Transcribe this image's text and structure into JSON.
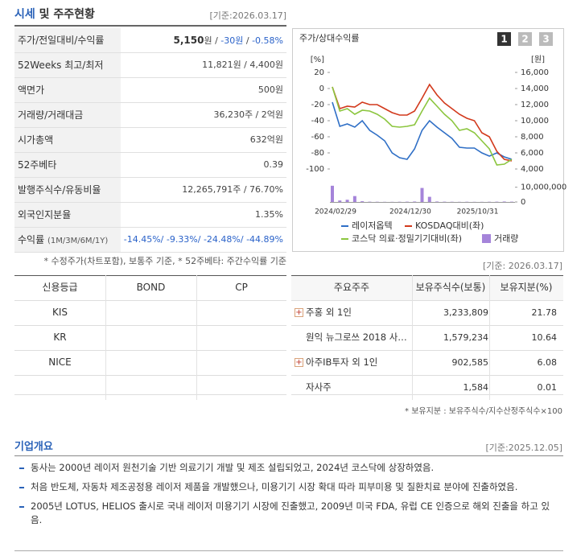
{
  "header": {
    "title_main": "시세",
    "title_rest": "및 주주현황",
    "date": "[기준:2026.03.17]"
  },
  "quote_table": {
    "rows": [
      {
        "label": "주가/전일대비/수익률",
        "value": [
          {
            "text": "5,150",
            "bold": true
          },
          "원 / ",
          {
            "text": "-30원",
            "color": "#2a62c9"
          },
          " / ",
          {
            "text": "-0.58%",
            "color": "#2a62c9"
          }
        ]
      },
      {
        "label": "52Weeks 최고/최저",
        "value": [
          "11,821원 / 4,400원"
        ]
      },
      {
        "label": "액면가",
        "value": [
          "500원"
        ]
      },
      {
        "label": "거래량/거래대금",
        "value": [
          "36,230주 / 2억원"
        ]
      },
      {
        "label": "시가총액",
        "value": [
          "632억원"
        ]
      },
      {
        "label": "52주베타",
        "value": [
          "0.39"
        ]
      },
      {
        "label": "발행주식수/유동비율",
        "value": [
          "12,265,791주 / 76.70%"
        ]
      },
      {
        "label": "외국인지분율",
        "value": [
          "1.35%"
        ]
      },
      {
        "label": "수익률",
        "label_note": "(1M/3M/6M/1Y)",
        "value": [
          {
            "text": "-14.45%/ -9.33%/ -24.48%/ -44.89%",
            "color": "#2a62c9"
          }
        ]
      }
    ],
    "note": "* 수정주가(차트포함), 보통주 기준, * 52주베타: 주간수익률 기준"
  },
  "chart_data": {
    "type": "line",
    "title": "주가/상대수익률",
    "buttons": [
      "1",
      "2",
      "3"
    ],
    "y_label": "[%]",
    "y2_label": "[원]",
    "categories": [
      "2024/02/29",
      null,
      null,
      null,
      null,
      null,
      null,
      null,
      null,
      null,
      "2024/12/30",
      null,
      null,
      null,
      null,
      null,
      null,
      null,
      null,
      "2025/10/31",
      null,
      null,
      null,
      null,
      null
    ],
    "ylim": [
      -100,
      20
    ],
    "yticks": [
      20,
      0,
      -20,
      -40,
      -60,
      -80,
      -100
    ],
    "y2lim": [
      4000,
      16000
    ],
    "y2ticks": [
      {
        "value": 16000,
        "label": "16,000"
      },
      {
        "value": 14000,
        "label": "14,000"
      },
      {
        "value": 12000,
        "label": "12,000"
      },
      {
        "value": 10000,
        "label": "10,000"
      },
      {
        "value": 8000,
        "label": "8,000"
      },
      {
        "value": 6000,
        "label": "6,000"
      },
      {
        "value": 4000,
        "label": "4,000"
      }
    ],
    "volume_lim": [
      0,
      12000000
    ],
    "volume_ticks": [
      {
        "value": 10000000,
        "label": "10,000,000"
      },
      0
    ],
    "series": [
      {
        "name": "레이저옵텍",
        "color": "#2f6fc6",
        "axis": "y2",
        "values": [
          12300,
          9300,
          9600,
          9200,
          10000,
          8800,
          8200,
          7500,
          6000,
          5400,
          5200,
          6500,
          8800,
          10000,
          9200,
          8500,
          7800,
          6700,
          6600,
          6600,
          6000,
          5600,
          6000,
          5500,
          5200
        ]
      },
      {
        "name": "KOSDAQ대비(좌)",
        "color": "#d2391c",
        "values": [
          2,
          -25,
          -22,
          -23,
          -17,
          -20,
          -20,
          -25,
          -30,
          -33,
          -33,
          -28,
          -12,
          5,
          -8,
          -18,
          -25,
          -32,
          -37,
          -40,
          -55,
          -60,
          -78,
          -88,
          -90
        ]
      },
      {
        "name": "코스닥 의료·정밀기기대비(좌)",
        "color": "#8cc63f",
        "values": [
          2,
          -28,
          -25,
          -32,
          -27,
          -28,
          -32,
          -38,
          -47,
          -48,
          -47,
          -45,
          -28,
          -12,
          -22,
          -32,
          -40,
          -52,
          -50,
          -55,
          -65,
          -75,
          -95,
          -94,
          -88
        ]
      },
      {
        "name": "거래량",
        "color": "#a584da",
        "type": "bar",
        "axis": "volume",
        "values": [
          11000000,
          1000000,
          1500000,
          4000000,
          500000,
          200000,
          150000,
          100000,
          100000,
          150000,
          200000,
          300000,
          9500000,
          3500000,
          300000,
          200000,
          150000,
          100000,
          150000,
          100000,
          100000,
          150000,
          200000,
          300000,
          200000
        ]
      }
    ]
  },
  "credit_table": {
    "headers": [
      "신용등급",
      "BOND",
      "CP"
    ],
    "agencies": [
      "KIS",
      "KR",
      "NICE"
    ]
  },
  "shareholders": {
    "date": "[기준: 2026.03.17]",
    "headers": [
      "주요주주",
      "보유주식수(보통)",
      "보유지분(%)"
    ],
    "rows": [
      {
        "name": "주홍 외 1인",
        "shares": "3,233,809",
        "stake": "21.78",
        "expandable": true
      },
      {
        "name": "원익 뉴그로쓰 2018 사…",
        "shares": "1,579,234",
        "stake": "10.64",
        "expandable": false
      },
      {
        "name": "아주IB투자 외 1인",
        "shares": "902,585",
        "stake": "6.08",
        "expandable": true
      },
      {
        "name": "자사주",
        "shares": "1,584",
        "stake": "0.01",
        "expandable": false
      }
    ],
    "note": "* 보유지분 : 보유주식수/지수산정주식수×100"
  },
  "overview": {
    "title": "기업개요",
    "date": "[기준:2025.12.05]",
    "items": [
      "동사는 2000년 레이저 원천기술 기반 의료기기 개발 및 제조 설립되었고, 2024년 코스닥에 상장하였음.",
      "처음 반도체, 자동차 제조공정용 레이저 제품을 개발했으나, 미용기기 시장 확대 따라 피부미용 및 질환치료 분야에 진출하였음.",
      "2005년 LOTUS, HELIOS 출시로 국내 레이저 미용기기 시장에 진출했고, 2009년 미국 FDA, 유럽 CE 인증으로 해외 진출을 하고 있음."
    ]
  }
}
